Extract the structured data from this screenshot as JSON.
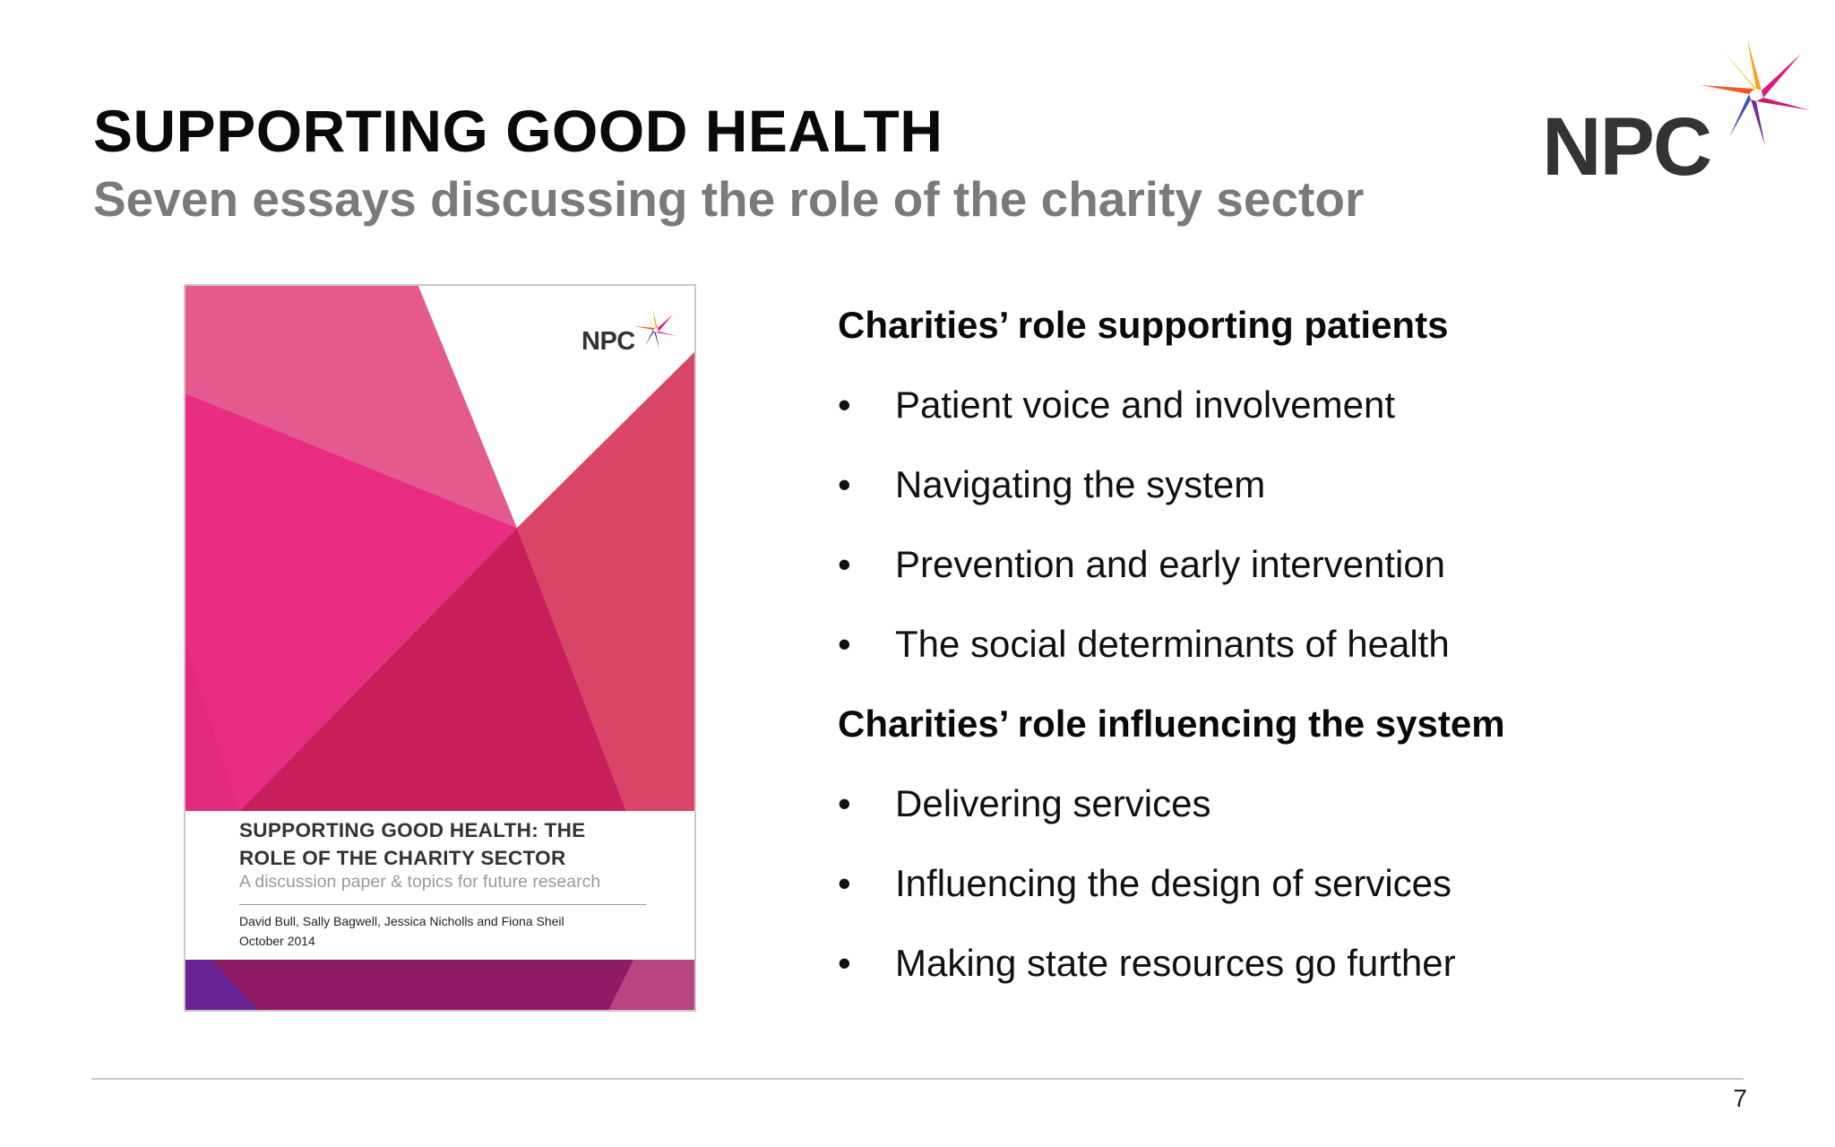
{
  "slide": {
    "title": "SUPPORTING GOOD HEALTH",
    "subtitle": "Seven essays discussing the role of the charity sector",
    "page_number": "7"
  },
  "logo": {
    "text": "NPC",
    "star_colors": [
      "#f7a21b",
      "#e3157a",
      "#7b2d8e",
      "#3f51b5",
      "#f05a28"
    ]
  },
  "cover": {
    "logo_text": "NPC",
    "title_line1": "SUPPORTING GOOD HEALTH: THE",
    "title_line2": "ROLE OF THE CHARITY SECTOR",
    "subtitle": "A discussion paper & topics for future research",
    "authors": "David Bull, Sally Bagwell, Jessica Nicholls and Fiona Sheil",
    "date": "October 2014"
  },
  "content": {
    "sections": [
      {
        "heading": "Charities’ role supporting patients",
        "bullets": [
          "Patient voice and involvement",
          "Navigating the system",
          "Prevention and early intervention",
          "The social determinants of health"
        ]
      },
      {
        "heading": "Charities’ role influencing the system",
        "bullets": [
          "Delivering services",
          "Influencing the design of services",
          "Making state resources go further"
        ]
      }
    ],
    "bullet_char": "•"
  }
}
